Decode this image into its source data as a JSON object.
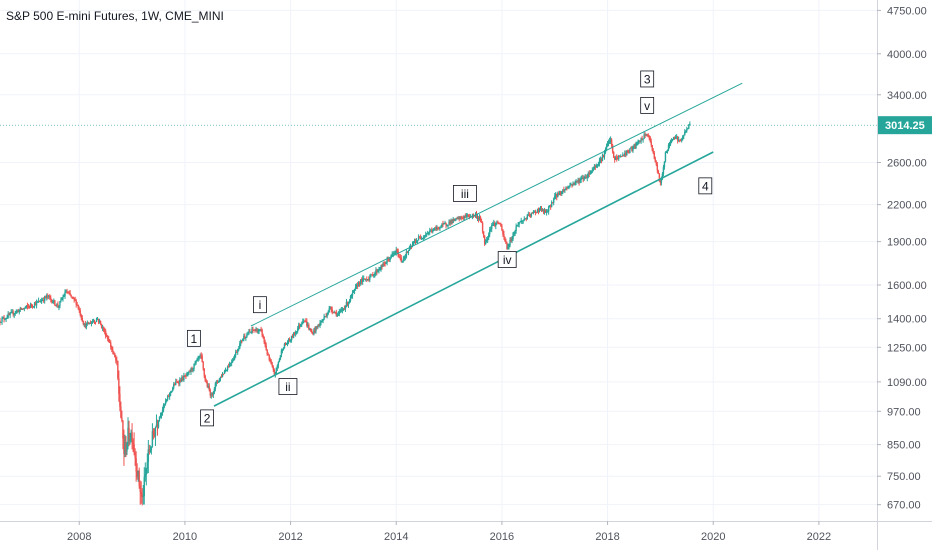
{
  "chart_data": {
    "type": "candlestick",
    "title": "S&P 500 E-mini Futures, 1W, CME_MINI",
    "colors": {
      "up": "#26a69a",
      "down": "#ef5350",
      "channel": "#26a69a",
      "grid": "#f0f3fa",
      "axis_text": "#50535e",
      "price_badge": "#26a69a"
    },
    "xlim": [
      2006.5,
      2023.1
    ],
    "ylim": [
      628,
      4950
    ],
    "y_scale": "log",
    "x_ticks": [
      {
        "value": 2008,
        "label": "2008"
      },
      {
        "value": 2010,
        "label": "2010"
      },
      {
        "value": 2012,
        "label": "2012"
      },
      {
        "value": 2014,
        "label": "2014"
      },
      {
        "value": 2016,
        "label": "2016"
      },
      {
        "value": 2018,
        "label": "2018"
      },
      {
        "value": 2020,
        "label": "2020"
      },
      {
        "value": 2022,
        "label": "2022"
      }
    ],
    "y_ticks": [
      {
        "value": 670,
        "label": "670.00"
      },
      {
        "value": 750,
        "label": "750.00"
      },
      {
        "value": 850,
        "label": "850.00"
      },
      {
        "value": 970,
        "label": "970.00"
      },
      {
        "value": 1090,
        "label": "1090.00"
      },
      {
        "value": 1250,
        "label": "1250.00"
      },
      {
        "value": 1400,
        "label": "1400.00"
      },
      {
        "value": 1600,
        "label": "1600.00"
      },
      {
        "value": 1900,
        "label": "1900.00"
      },
      {
        "value": 2200,
        "label": "2200.00"
      },
      {
        "value": 2600,
        "label": "2600.00"
      },
      {
        "value": 3400,
        "label": "3400.00"
      },
      {
        "value": 4000,
        "label": "4000.00"
      },
      {
        "value": 4750,
        "label": "4750.00"
      }
    ],
    "last_price": {
      "value": 3014.25,
      "label": "3014.25"
    },
    "price_path": [
      [
        2006.5,
        1390
      ],
      [
        2006.8,
        1440
      ],
      [
        2007.2,
        1490
      ],
      [
        2007.4,
        1530
      ],
      [
        2007.6,
        1470
      ],
      [
        2007.75,
        1560
      ],
      [
        2007.95,
        1490
      ],
      [
        2008.1,
        1360
      ],
      [
        2008.35,
        1400
      ],
      [
        2008.55,
        1290
      ],
      [
        2008.7,
        1180
      ],
      [
        2008.78,
        970
      ],
      [
        2008.85,
        820
      ],
      [
        2008.92,
        880
      ],
      [
        2009.0,
        890
      ],
      [
        2009.1,
        760
      ],
      [
        2009.19,
        680
      ],
      [
        2009.3,
        810
      ],
      [
        2009.45,
        920
      ],
      [
        2009.6,
        990
      ],
      [
        2009.8,
        1080
      ],
      [
        2010.05,
        1120
      ],
      [
        2010.3,
        1210
      ],
      [
        2010.38,
        1100
      ],
      [
        2010.5,
        1030
      ],
      [
        2010.58,
        1080
      ],
      [
        2010.7,
        1120
      ],
      [
        2010.9,
        1190
      ],
      [
        2011.1,
        1300
      ],
      [
        2011.3,
        1340
      ],
      [
        2011.45,
        1330
      ],
      [
        2011.58,
        1200
      ],
      [
        2011.7,
        1120
      ],
      [
        2011.85,
        1250
      ],
      [
        2012.0,
        1290
      ],
      [
        2012.25,
        1400
      ],
      [
        2012.4,
        1320
      ],
      [
        2012.6,
        1390
      ],
      [
        2012.75,
        1460
      ],
      [
        2012.9,
        1420
      ],
      [
        2013.1,
        1500
      ],
      [
        2013.3,
        1620
      ],
      [
        2013.5,
        1650
      ],
      [
        2013.75,
        1730
      ],
      [
        2014.0,
        1830
      ],
      [
        2014.1,
        1760
      ],
      [
        2014.35,
        1900
      ],
      [
        2014.6,
        1970
      ],
      [
        2014.8,
        2010
      ],
      [
        2015.0,
        2050
      ],
      [
        2015.3,
        2100
      ],
      [
        2015.5,
        2110
      ],
      [
        2015.6,
        2070
      ],
      [
        2015.68,
        1880
      ],
      [
        2015.8,
        2030
      ],
      [
        2015.95,
        2050
      ],
      [
        2016.1,
        1850
      ],
      [
        2016.3,
        2040
      ],
      [
        2016.5,
        2100
      ],
      [
        2016.7,
        2160
      ],
      [
        2016.85,
        2130
      ],
      [
        2017.0,
        2270
      ],
      [
        2017.3,
        2380
      ],
      [
        2017.6,
        2460
      ],
      [
        2017.9,
        2650
      ],
      [
        2018.05,
        2860
      ],
      [
        2018.12,
        2630
      ],
      [
        2018.3,
        2680
      ],
      [
        2018.5,
        2760
      ],
      [
        2018.75,
        2920
      ],
      [
        2018.85,
        2740
      ],
      [
        2018.95,
        2500
      ],
      [
        2019.0,
        2380
      ],
      [
        2019.1,
        2700
      ],
      [
        2019.25,
        2900
      ],
      [
        2019.38,
        2820
      ],
      [
        2019.5,
        2980
      ],
      [
        2019.55,
        3014
      ]
    ],
    "channel_lines": [
      {
        "name": "upper",
        "x1": 2011.25,
        "y1": 1360,
        "x2": 2020.55,
        "y2": 3560
      },
      {
        "name": "lower",
        "x1": 2010.55,
        "y1": 990,
        "x2": 2020.0,
        "y2": 2710
      }
    ],
    "wave_labels": [
      {
        "text": "1",
        "x": 2010.17,
        "y": 1295
      },
      {
        "text": "2",
        "x": 2010.42,
        "y": 945
      },
      {
        "text": "i",
        "x": 2011.42,
        "y": 1480
      },
      {
        "text": "ii",
        "x": 2011.95,
        "y": 1070
      },
      {
        "text": "iii",
        "x": 2015.3,
        "y": 2300
      },
      {
        "text": "iv",
        "x": 2016.1,
        "y": 1770
      },
      {
        "text": "3",
        "x": 2018.75,
        "y": 3620
      },
      {
        "text": "v",
        "x": 2018.75,
        "y": 3260
      },
      {
        "text": "4",
        "x": 2019.85,
        "y": 2370
      }
    ]
  }
}
